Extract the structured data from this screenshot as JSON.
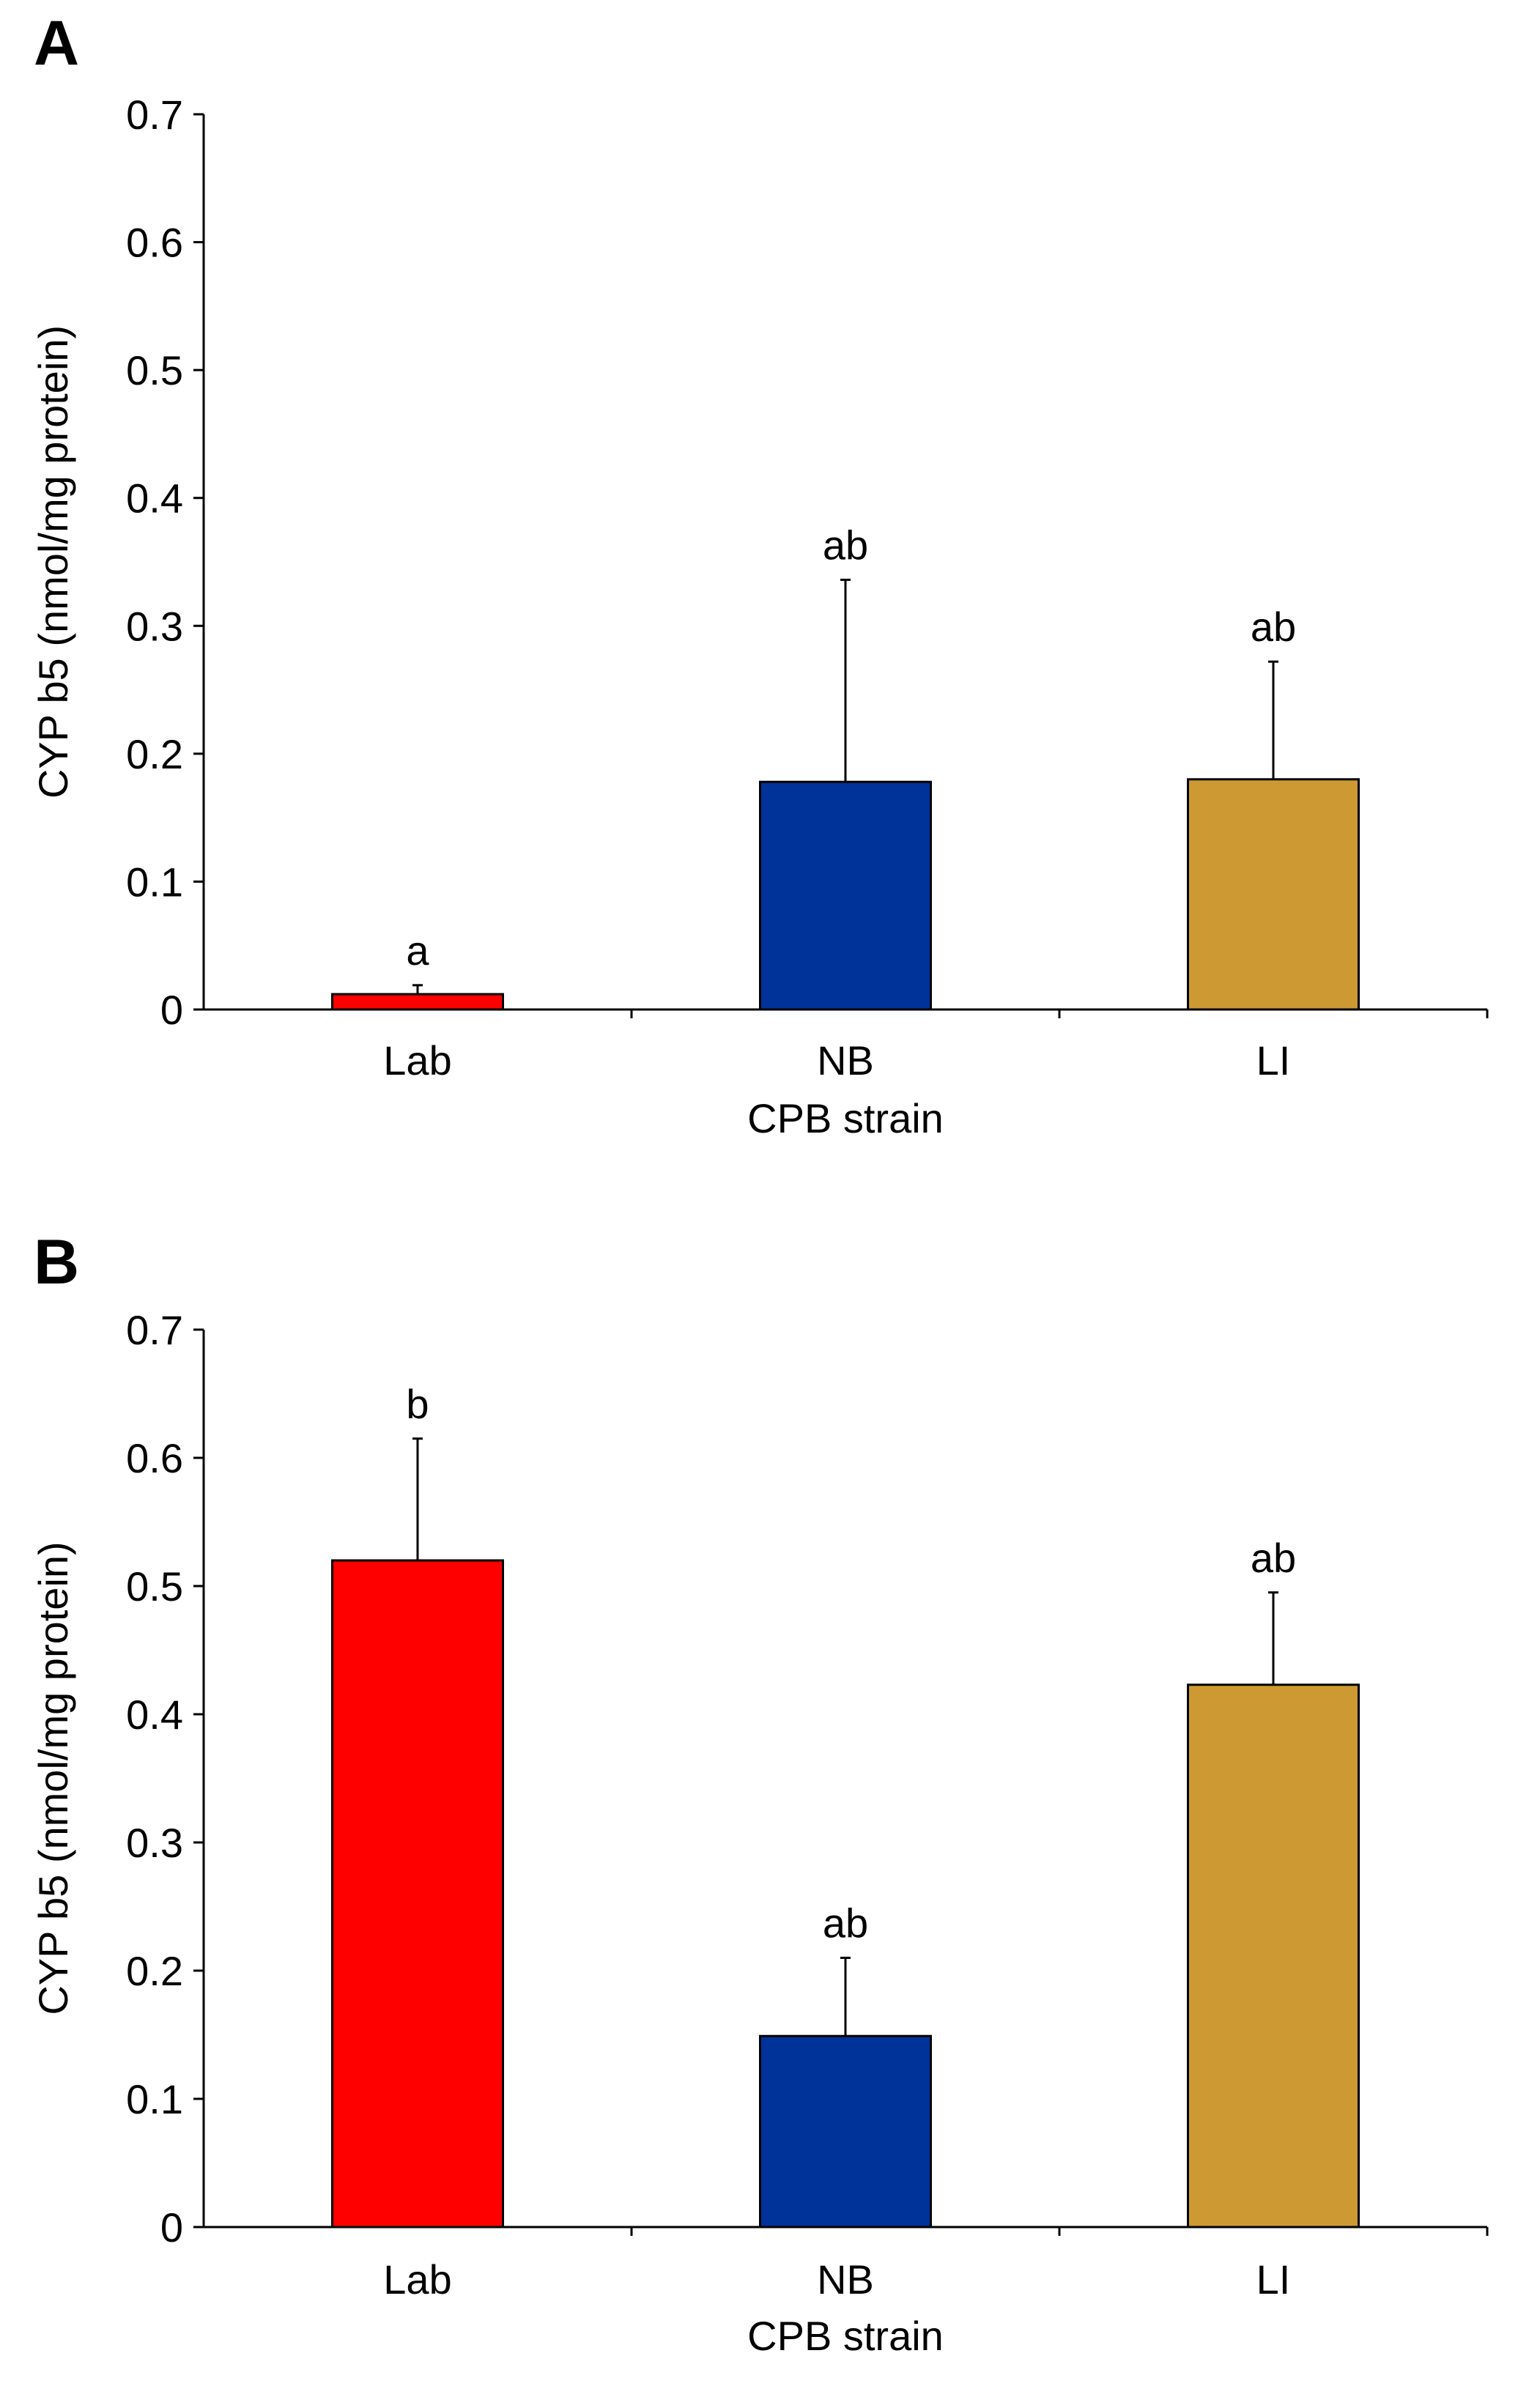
{
  "chart_data": [
    {
      "type": "bar",
      "panel": "A",
      "categories": [
        "Lab",
        "NB",
        "LI"
      ],
      "values": [
        0.012,
        0.178,
        0.18
      ],
      "errors": [
        0.007,
        0.158,
        0.092
      ],
      "significance": [
        "a",
        "ab",
        "ab"
      ],
      "colors": [
        "#ff0000",
        "#003399",
        "#cc9933"
      ],
      "xlabel": "CPB strain",
      "ylabel": "CYP b5 (nmol/mg protein)",
      "ylim": [
        0,
        0.7
      ],
      "yticks": [
        "0",
        "0.1",
        "0.2",
        "0.3",
        "0.4",
        "0.5",
        "0.6",
        "0.7"
      ],
      "grid": false
    },
    {
      "type": "bar",
      "panel": "B",
      "categories": [
        "Lab",
        "NB",
        "LI"
      ],
      "values": [
        0.52,
        0.149,
        0.423
      ],
      "errors": [
        0.095,
        0.061,
        0.072
      ],
      "significance": [
        "b",
        "ab",
        "ab"
      ],
      "colors": [
        "#ff0000",
        "#003399",
        "#cc9933"
      ],
      "xlabel": "CPB strain",
      "ylabel": "CYP b5 (nmol/mg protein)",
      "ylim": [
        0,
        0.7
      ],
      "yticks": [
        "0",
        "0.1",
        "0.2",
        "0.3",
        "0.4",
        "0.5",
        "0.6",
        "0.7"
      ],
      "grid": false
    }
  ]
}
